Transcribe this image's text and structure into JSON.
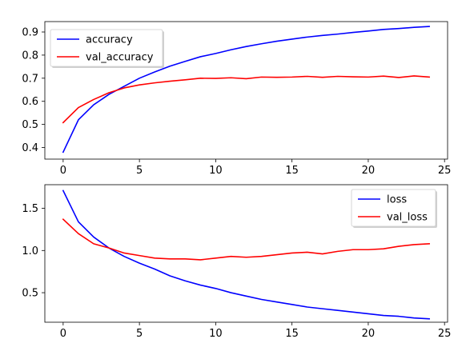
{
  "chart_data": [
    {
      "type": "line",
      "x": [
        0,
        1,
        2,
        3,
        4,
        5,
        6,
        7,
        8,
        9,
        10,
        11,
        12,
        13,
        14,
        15,
        16,
        17,
        18,
        19,
        20,
        21,
        22,
        23,
        24
      ],
      "xlim": [
        -1.2,
        25.2
      ],
      "ylim": [
        0.35,
        0.945
      ],
      "xticks": [
        0,
        5,
        10,
        15,
        20,
        25
      ],
      "yticks": [
        0.4,
        0.5,
        0.6,
        0.7,
        0.8,
        0.9
      ],
      "xtick_labels": [
        "0",
        "5",
        "10",
        "15",
        "20",
        "25"
      ],
      "ytick_labels": [
        "0.4",
        "0.5",
        "0.6",
        "0.7",
        "0.8",
        "0.9"
      ],
      "legend_position": "upper-left",
      "grid": false,
      "series": [
        {
          "name": "accuracy",
          "color": "#0000ff",
          "values": [
            0.38,
            0.52,
            0.585,
            0.63,
            0.665,
            0.7,
            0.727,
            0.752,
            0.773,
            0.793,
            0.807,
            0.823,
            0.837,
            0.849,
            0.86,
            0.869,
            0.878,
            0.885,
            0.891,
            0.898,
            0.904,
            0.911,
            0.915,
            0.92,
            0.924
          ]
        },
        {
          "name": "val_accuracy",
          "color": "#ff0000",
          "values": [
            0.508,
            0.573,
            0.608,
            0.637,
            0.658,
            0.671,
            0.68,
            0.687,
            0.693,
            0.7,
            0.699,
            0.702,
            0.698,
            0.705,
            0.704,
            0.705,
            0.708,
            0.704,
            0.708,
            0.706,
            0.705,
            0.709,
            0.703,
            0.71,
            0.705
          ]
        }
      ]
    },
    {
      "type": "line",
      "x": [
        0,
        1,
        2,
        3,
        4,
        5,
        6,
        7,
        8,
        9,
        10,
        11,
        12,
        13,
        14,
        15,
        16,
        17,
        18,
        19,
        20,
        21,
        22,
        23,
        24
      ],
      "xlim": [
        -1.2,
        25.2
      ],
      "ylim": [
        0.15,
        1.78
      ],
      "xticks": [
        0,
        5,
        10,
        15,
        20,
        25
      ],
      "yticks": [
        0.5,
        1.0,
        1.5
      ],
      "xtick_labels": [
        "0",
        "5",
        "10",
        "15",
        "20",
        "25"
      ],
      "ytick_labels": [
        "0.5",
        "1.0",
        "1.5"
      ],
      "legend_position": "upper-right",
      "grid": false,
      "series": [
        {
          "name": "loss",
          "color": "#0000ff",
          "values": [
            1.71,
            1.34,
            1.16,
            1.03,
            0.93,
            0.85,
            0.78,
            0.7,
            0.64,
            0.59,
            0.55,
            0.5,
            0.46,
            0.42,
            0.39,
            0.36,
            0.33,
            0.31,
            0.29,
            0.27,
            0.25,
            0.23,
            0.22,
            0.2,
            0.19
          ]
        },
        {
          "name": "val_loss",
          "color": "#ff0000",
          "values": [
            1.37,
            1.2,
            1.08,
            1.03,
            0.97,
            0.94,
            0.91,
            0.9,
            0.9,
            0.89,
            0.91,
            0.93,
            0.92,
            0.93,
            0.95,
            0.97,
            0.98,
            0.96,
            0.99,
            1.01,
            1.01,
            1.02,
            1.05,
            1.07,
            1.08
          ]
        }
      ]
    }
  ]
}
